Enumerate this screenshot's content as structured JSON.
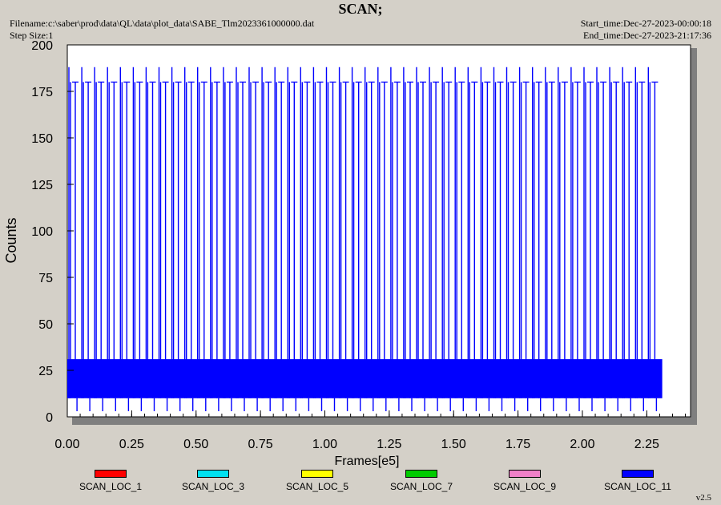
{
  "header": {
    "title": "SCAN;",
    "filename": "Filename:c:\\saber\\prod\\data\\QL\\data\\plot_data\\SABE_Tlm2023361000000.dat",
    "step_size": "Step Size:1",
    "start_time": "Start_time:Dec-27-2023-00:00:18",
    "end_time": "End_time:Dec-27-2023-21:17:36"
  },
  "version": "v2.5",
  "chart_data": {
    "type": "line",
    "title": "SCAN;",
    "xlabel": "Frames[e5]",
    "ylabel": "Counts",
    "xlim": [
      0,
      2.42
    ],
    "ylim": [
      0,
      200
    ],
    "xticks": [
      0.0,
      0.25,
      0.5,
      0.75,
      1.0,
      1.25,
      1.5,
      1.75,
      2.0,
      2.25
    ],
    "xtick_labels": [
      "0.00",
      "0.25",
      "0.50",
      "0.75",
      "1.00",
      "1.25",
      "1.50",
      "1.75",
      "2.00",
      "2.25"
    ],
    "yticks": [
      0,
      25,
      50,
      75,
      100,
      125,
      150,
      175,
      200
    ],
    "ytick_labels": [
      "0",
      "25",
      "50",
      "75",
      "100",
      "125",
      "150",
      "175",
      "200"
    ],
    "grid": false,
    "legend_position": "bottom",
    "series": [
      {
        "name": "SCAN_LOC_1",
        "color": "#ff0000",
        "values": []
      },
      {
        "name": "SCAN_LOC_3",
        "color": "#00e0f0",
        "values": []
      },
      {
        "name": "SCAN_LOC_5",
        "color": "#ffff00",
        "values": []
      },
      {
        "name": "SCAN_LOC_7",
        "color": "#00cc00",
        "values": []
      },
      {
        "name": "SCAN_LOC_9",
        "color": "#f080c8",
        "values": []
      },
      {
        "name": "SCAN_LOC_11",
        "color": "#0000ff",
        "x_range": [
          0.0,
          2.31
        ],
        "baseline_band": [
          10,
          31
        ],
        "spike_period": 0.05,
        "spike_peaks": [
          180,
          188
        ],
        "minimum": 3
      }
    ]
  }
}
